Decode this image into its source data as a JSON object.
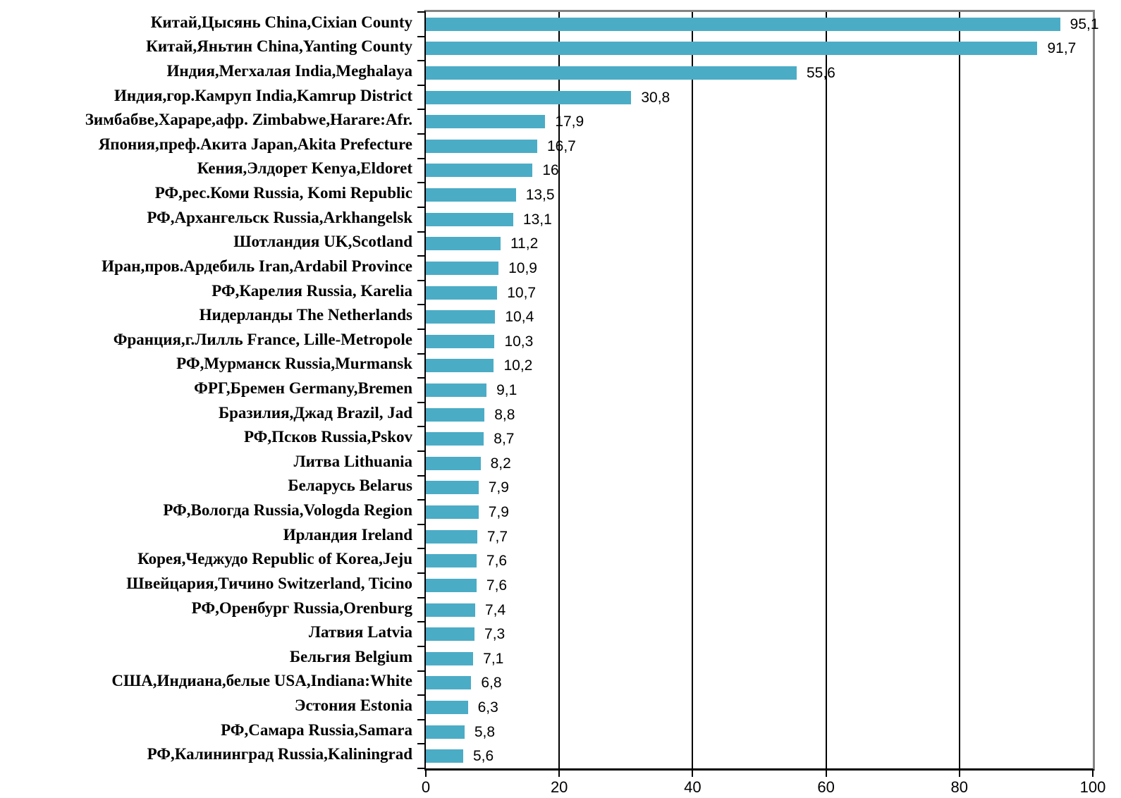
{
  "chart_data": {
    "type": "bar",
    "orientation": "horizontal",
    "title": "",
    "xlabel": "",
    "ylabel": "",
    "xlim": [
      0,
      100
    ],
    "xticks": [
      0,
      20,
      40,
      60,
      80,
      100
    ],
    "gridline_values": [
      20,
      40,
      60,
      80
    ],
    "grid": "vertical-on",
    "legend": "none",
    "bar_color": "#4BACC6",
    "axis_color": "#000000",
    "frame_color": "#848484",
    "categories": [
      "Китай,Цысянь China,Cixian County",
      "Китай,Яньтин China,Yanting County",
      "Индия,Мегхалая India,Meghalaya",
      "Индия,гор.Камруп India,Kamrup District",
      "Зимбабве,Хараре,афр. Zimbabwe,Harare:Afr.",
      "Япония,преф.Акита Japan,Akita Prefecture",
      "Кения,Элдорет Kenya,Eldoret",
      "РФ,рес.Коми Russia, Komi Republic",
      "РФ,Архангельск Russia,Arkhangelsk",
      "Шотландия UK,Scotland",
      "Иран,пров.Ардебиль Iran,Ardabil Province",
      "РФ,Карелия Russia, Karelia",
      "Нидерланды The Netherlands",
      "Франция,г.Лилль France, Lille-Metropole",
      "РФ,Мурманск Russia,Murmansk",
      "ФРГ,Бремен Germany,Bremen",
      "Бразилия,Джад Brazil, Jad",
      "РФ,Псков Russia,Pskov",
      "Литва Lithuania",
      "Беларусь Belarus",
      "РФ,Вологда Russia,Vologda Region",
      "Ирландия Ireland",
      "Корея,Чеджудо Republic of Korea,Jeju",
      "Швейцария,Тичино Switzerland, Ticino",
      "РФ,Оренбург Russia,Orenburg",
      "Латвия Latvia",
      "Бельгия Belgium",
      "США,Индиана,белые USA,Indiana:White",
      "Эстония Estonia",
      "РФ,Самара Russia,Samara",
      "РФ,Калининград Russia,Kaliningrad"
    ],
    "values": [
      95.1,
      91.7,
      55.6,
      30.8,
      17.9,
      16.7,
      16,
      13.5,
      13.1,
      11.2,
      10.9,
      10.7,
      10.4,
      10.3,
      10.2,
      9.1,
      8.8,
      8.7,
      8.2,
      7.9,
      7.9,
      7.7,
      7.6,
      7.6,
      7.4,
      7.3,
      7.1,
      6.8,
      6.3,
      5.8,
      5.6
    ],
    "value_labels": [
      "95,1",
      "91,7",
      "55,6",
      "30,8",
      "17,9",
      "16,7",
      "16",
      "13,5",
      "13,1",
      "11,2",
      "10,9",
      "10,7",
      "10,4",
      "10,3",
      "10,2",
      "9,1",
      "8,8",
      "8,7",
      "8,2",
      "7,9",
      "7,9",
      "7,7",
      "7,6",
      "7,6",
      "7,4",
      "7,3",
      "7,1",
      "6,8",
      "6,3",
      "5,8",
      "5,6"
    ]
  }
}
